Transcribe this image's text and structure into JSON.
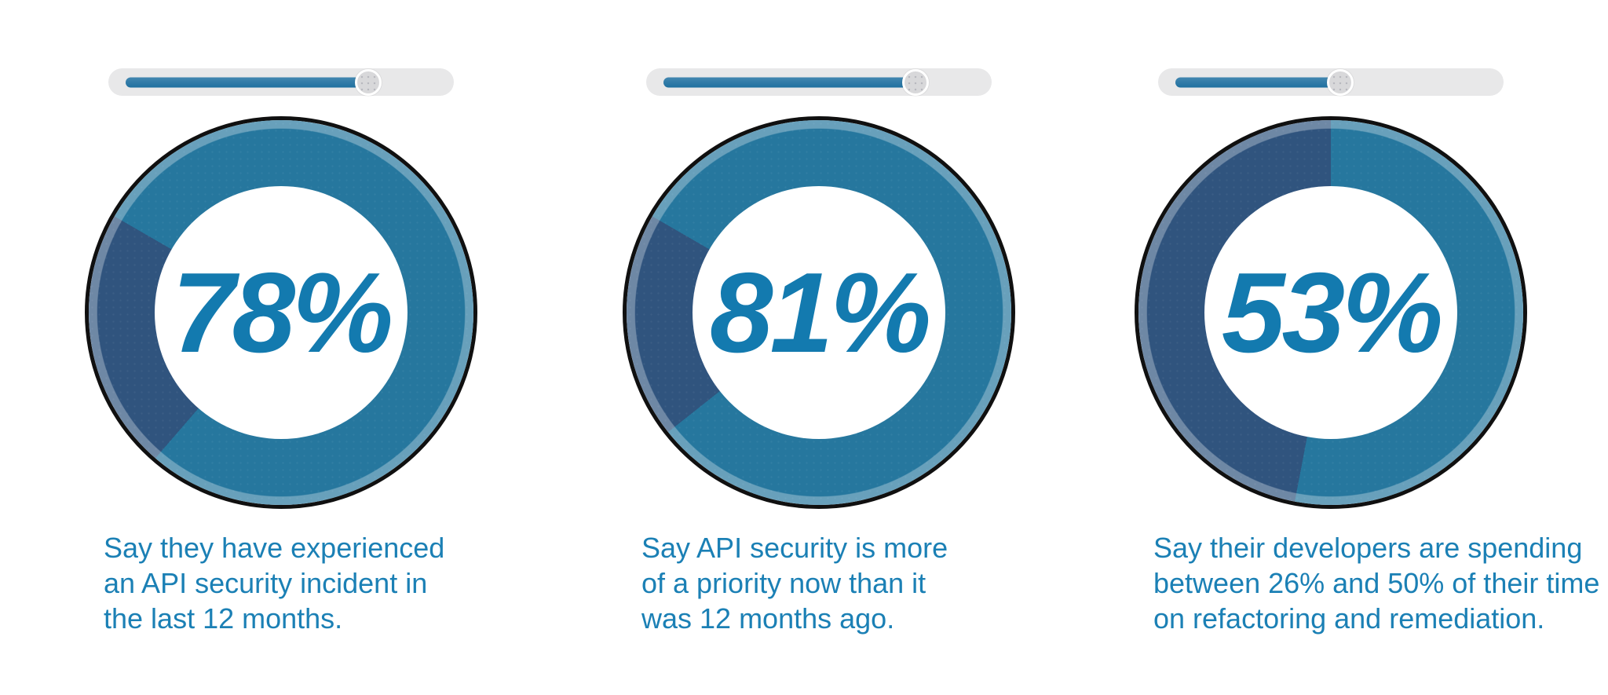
{
  "colors": {
    "page_bg": "#ffffff",
    "ring_main": "#26779e",
    "ring_remainder": "#30547e",
    "ring_outline": "#101010",
    "rim_highlight": "rgba(255,255,255,0.30)",
    "number_blue": "#137aaf",
    "caption_blue": "#1b80b5",
    "slider_track": "#e8e8e9",
    "slider_fill_top": "#4387b0",
    "slider_fill_bottom": "#1f70a0",
    "slider_thumb": "#d8d8da"
  },
  "stats": [
    {
      "id": "incident",
      "value_pct": 78,
      "value_label": "78%",
      "slider_pct": 78,
      "start_deg": -60,
      "caption_lines": [
        "Say they have experienced",
        "an API security incident in",
        "the last 12 months."
      ]
    },
    {
      "id": "priority",
      "value_pct": 81,
      "value_label": "81%",
      "slider_pct": 81,
      "start_deg": -60,
      "caption_lines": [
        "Say API security is more",
        "of a priority now than it",
        "was 12 months ago."
      ]
    },
    {
      "id": "refactoring",
      "value_pct": 53,
      "value_label": "53%",
      "slider_pct": 53,
      "start_deg": 0,
      "caption_lines": [
        "Say their developers are spending",
        "between 26% and 50% of their time",
        "on refactoring and remediation."
      ]
    }
  ],
  "chart_data": [
    {
      "type": "pie",
      "donut": true,
      "center_label": "78%",
      "slices": [
        {
          "label": "Say they have experienced an API security incident in the last 12 months.",
          "value": 78,
          "color": "#26779e"
        },
        {
          "label": "",
          "value": 22,
          "color": "#30547e"
        }
      ]
    },
    {
      "type": "pie",
      "donut": true,
      "center_label": "81%",
      "slices": [
        {
          "label": "Say API security is more of a priority now than it was 12 months ago.",
          "value": 81,
          "color": "#26779e"
        },
        {
          "label": "",
          "value": 19,
          "color": "#30547e"
        }
      ]
    },
    {
      "type": "pie",
      "donut": true,
      "center_label": "53%",
      "slices": [
        {
          "label": "Say their developers are spending between 26% and 50% of their time on refactoring and remediation.",
          "value": 53,
          "color": "#26779e"
        },
        {
          "label": "",
          "value": 47,
          "color": "#30547e"
        }
      ]
    }
  ]
}
